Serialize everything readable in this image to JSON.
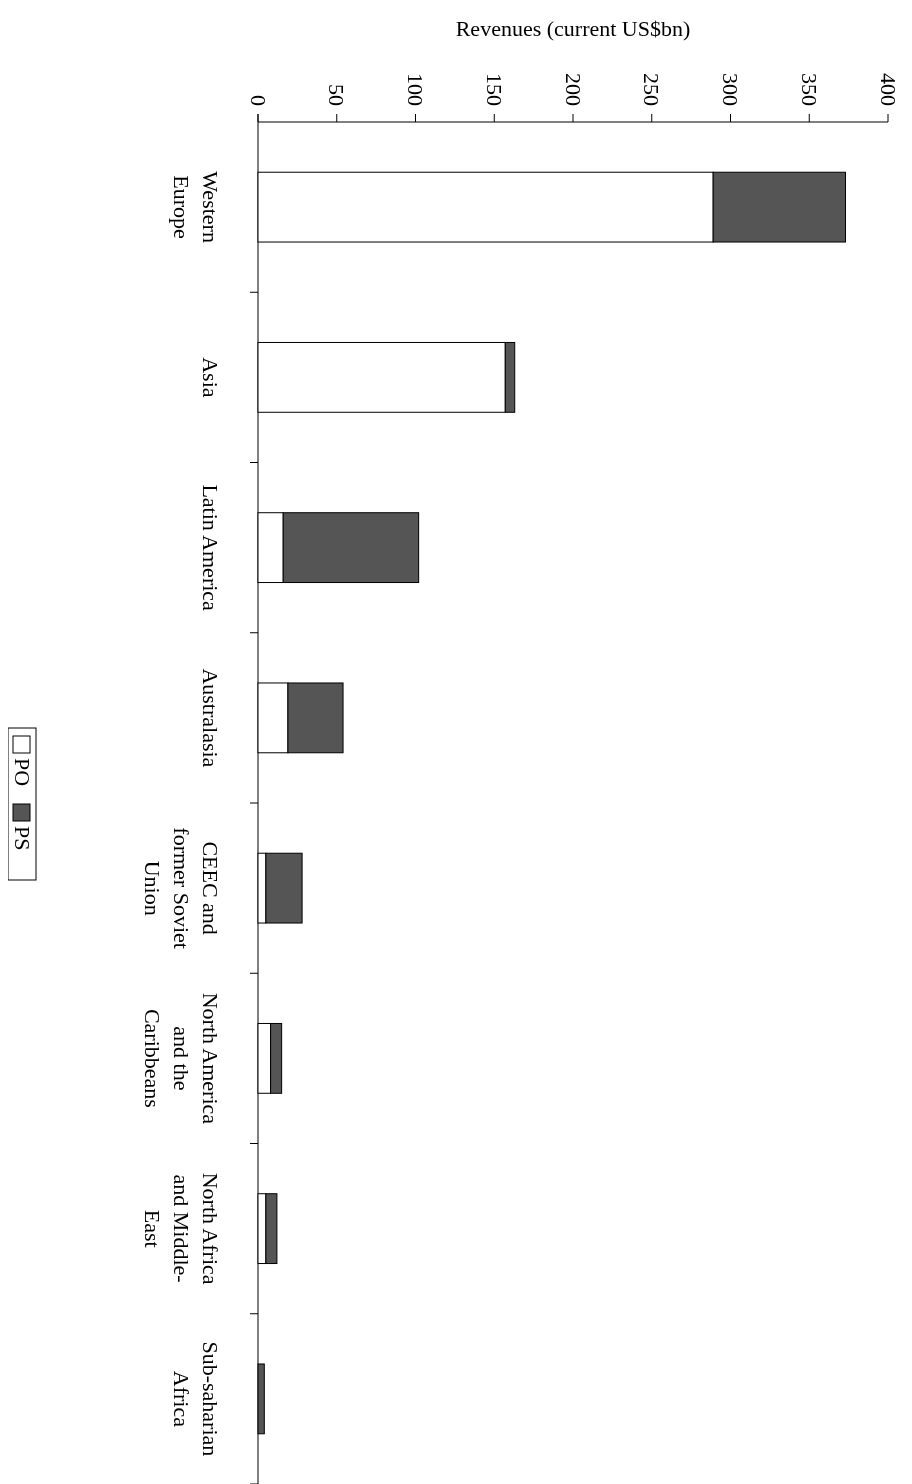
{
  "chart_data": {
    "type": "bar",
    "orientation": "horizontal",
    "stacked": true,
    "xlabel": "Revenues (current US$bn)",
    "categories": [
      "Western Europe",
      "Asia",
      "Latin America",
      "Australasia",
      "CEEC and former Soviet Union",
      "North America and the Caribbeans",
      "North Africa and Middle-East",
      "Sub-saharian Africa"
    ],
    "series": [
      {
        "name": "PO",
        "color": "#ffffff",
        "values": [
          289,
          157,
          16,
          19,
          5,
          8,
          5,
          null
        ]
      },
      {
        "name": "PS",
        "color": "#555555",
        "values": [
          84,
          6,
          86,
          35,
          23,
          7,
          7,
          4
        ]
      }
    ],
    "xlim": [
      0,
      400
    ],
    "xticks": [
      0,
      50,
      100,
      150,
      200,
      250,
      300,
      350,
      400
    ],
    "legend": "left"
  }
}
